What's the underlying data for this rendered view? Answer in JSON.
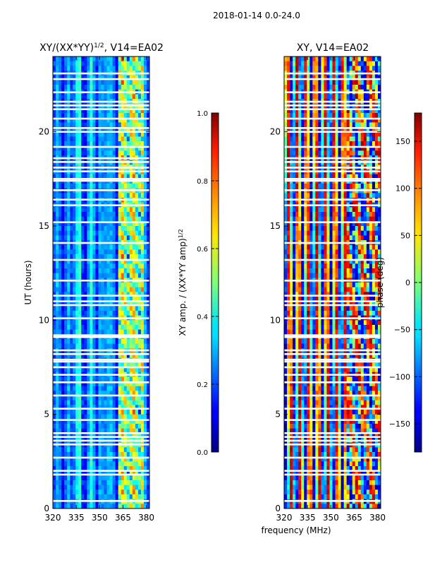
{
  "figure": {
    "suptitle": "2018-01-14 0.0-24.0",
    "shared_xlabel": "frequency (MHz)"
  },
  "chart_data": [
    {
      "type": "heatmap",
      "title": "XY/(XX*YY)",
      "title_superscript": "1/2",
      "title_suffix": ", V14=EA02",
      "xlabel": "",
      "ylabel": "UT (hours)",
      "xlim": [
        320,
        382
      ],
      "ylim": [
        0,
        24
      ],
      "xticks": [
        320,
        335,
        350,
        365,
        380
      ],
      "yticks": [
        0,
        5,
        10,
        15,
        20
      ],
      "colormap": "jet",
      "colorbar": {
        "label": "XY amp. / (XX*YY amp)",
        "label_superscript": "1/2",
        "range": [
          0.0,
          1.0
        ],
        "ticks": [
          "0.0",
          "0.2",
          "0.4",
          "0.6",
          "0.8",
          "1.0"
        ],
        "tick_values": [
          0.0,
          0.2,
          0.4,
          0.6,
          0.8,
          1.0
        ]
      },
      "flagged_ut_bands": [
        0.4,
        1.8,
        2.0,
        2.7,
        3.4,
        3.6,
        3.8,
        4.0,
        4.7,
        5.3,
        6.0,
        6.7,
        7.1,
        7.5,
        7.8,
        7.9,
        8.2,
        8.4,
        9.1,
        9.2,
        10.1,
        10.8,
        11.0,
        11.3,
        12.1,
        13.2,
        14.1,
        15.2,
        16.1,
        16.4,
        16.9,
        17.4,
        17.5,
        17.9,
        18.1,
        18.4,
        18.6,
        19.2,
        20.0,
        20.2,
        20.7,
        21.2,
        21.4,
        21.6,
        22.1,
        22.8,
        23.1
      ]
    },
    {
      "type": "heatmap",
      "title": "XY, V14=EA02",
      "xlabel": "frequency (MHz)",
      "ylabel": "",
      "xlim": [
        320,
        382
      ],
      "ylim": [
        0,
        24
      ],
      "xticks": [
        320,
        335,
        350,
        365,
        380
      ],
      "yticks": [
        0,
        5,
        10,
        15,
        20
      ],
      "colormap": "jet",
      "colorbar": {
        "label": "phase (deg)",
        "range": [
          -180,
          180
        ],
        "ticks": [
          "−150",
          "−100",
          "−50",
          "0",
          "50",
          "100",
          "150"
        ],
        "tick_values": [
          -150,
          -100,
          -50,
          0,
          50,
          100,
          150
        ]
      },
      "flagged_ut_bands": [
        0.4,
        1.8,
        2.0,
        2.7,
        3.4,
        3.6,
        3.8,
        4.0,
        4.7,
        5.3,
        6.0,
        6.7,
        7.1,
        7.5,
        7.8,
        7.9,
        8.2,
        8.4,
        9.1,
        9.2,
        10.1,
        10.8,
        11.0,
        11.3,
        12.1,
        13.2,
        14.1,
        15.2,
        16.1,
        16.4,
        16.9,
        17.4,
        17.5,
        17.9,
        18.1,
        18.4,
        18.6,
        19.2,
        20.0,
        20.2,
        20.7,
        21.2,
        21.4,
        21.6,
        22.1,
        22.8,
        23.1
      ]
    }
  ]
}
